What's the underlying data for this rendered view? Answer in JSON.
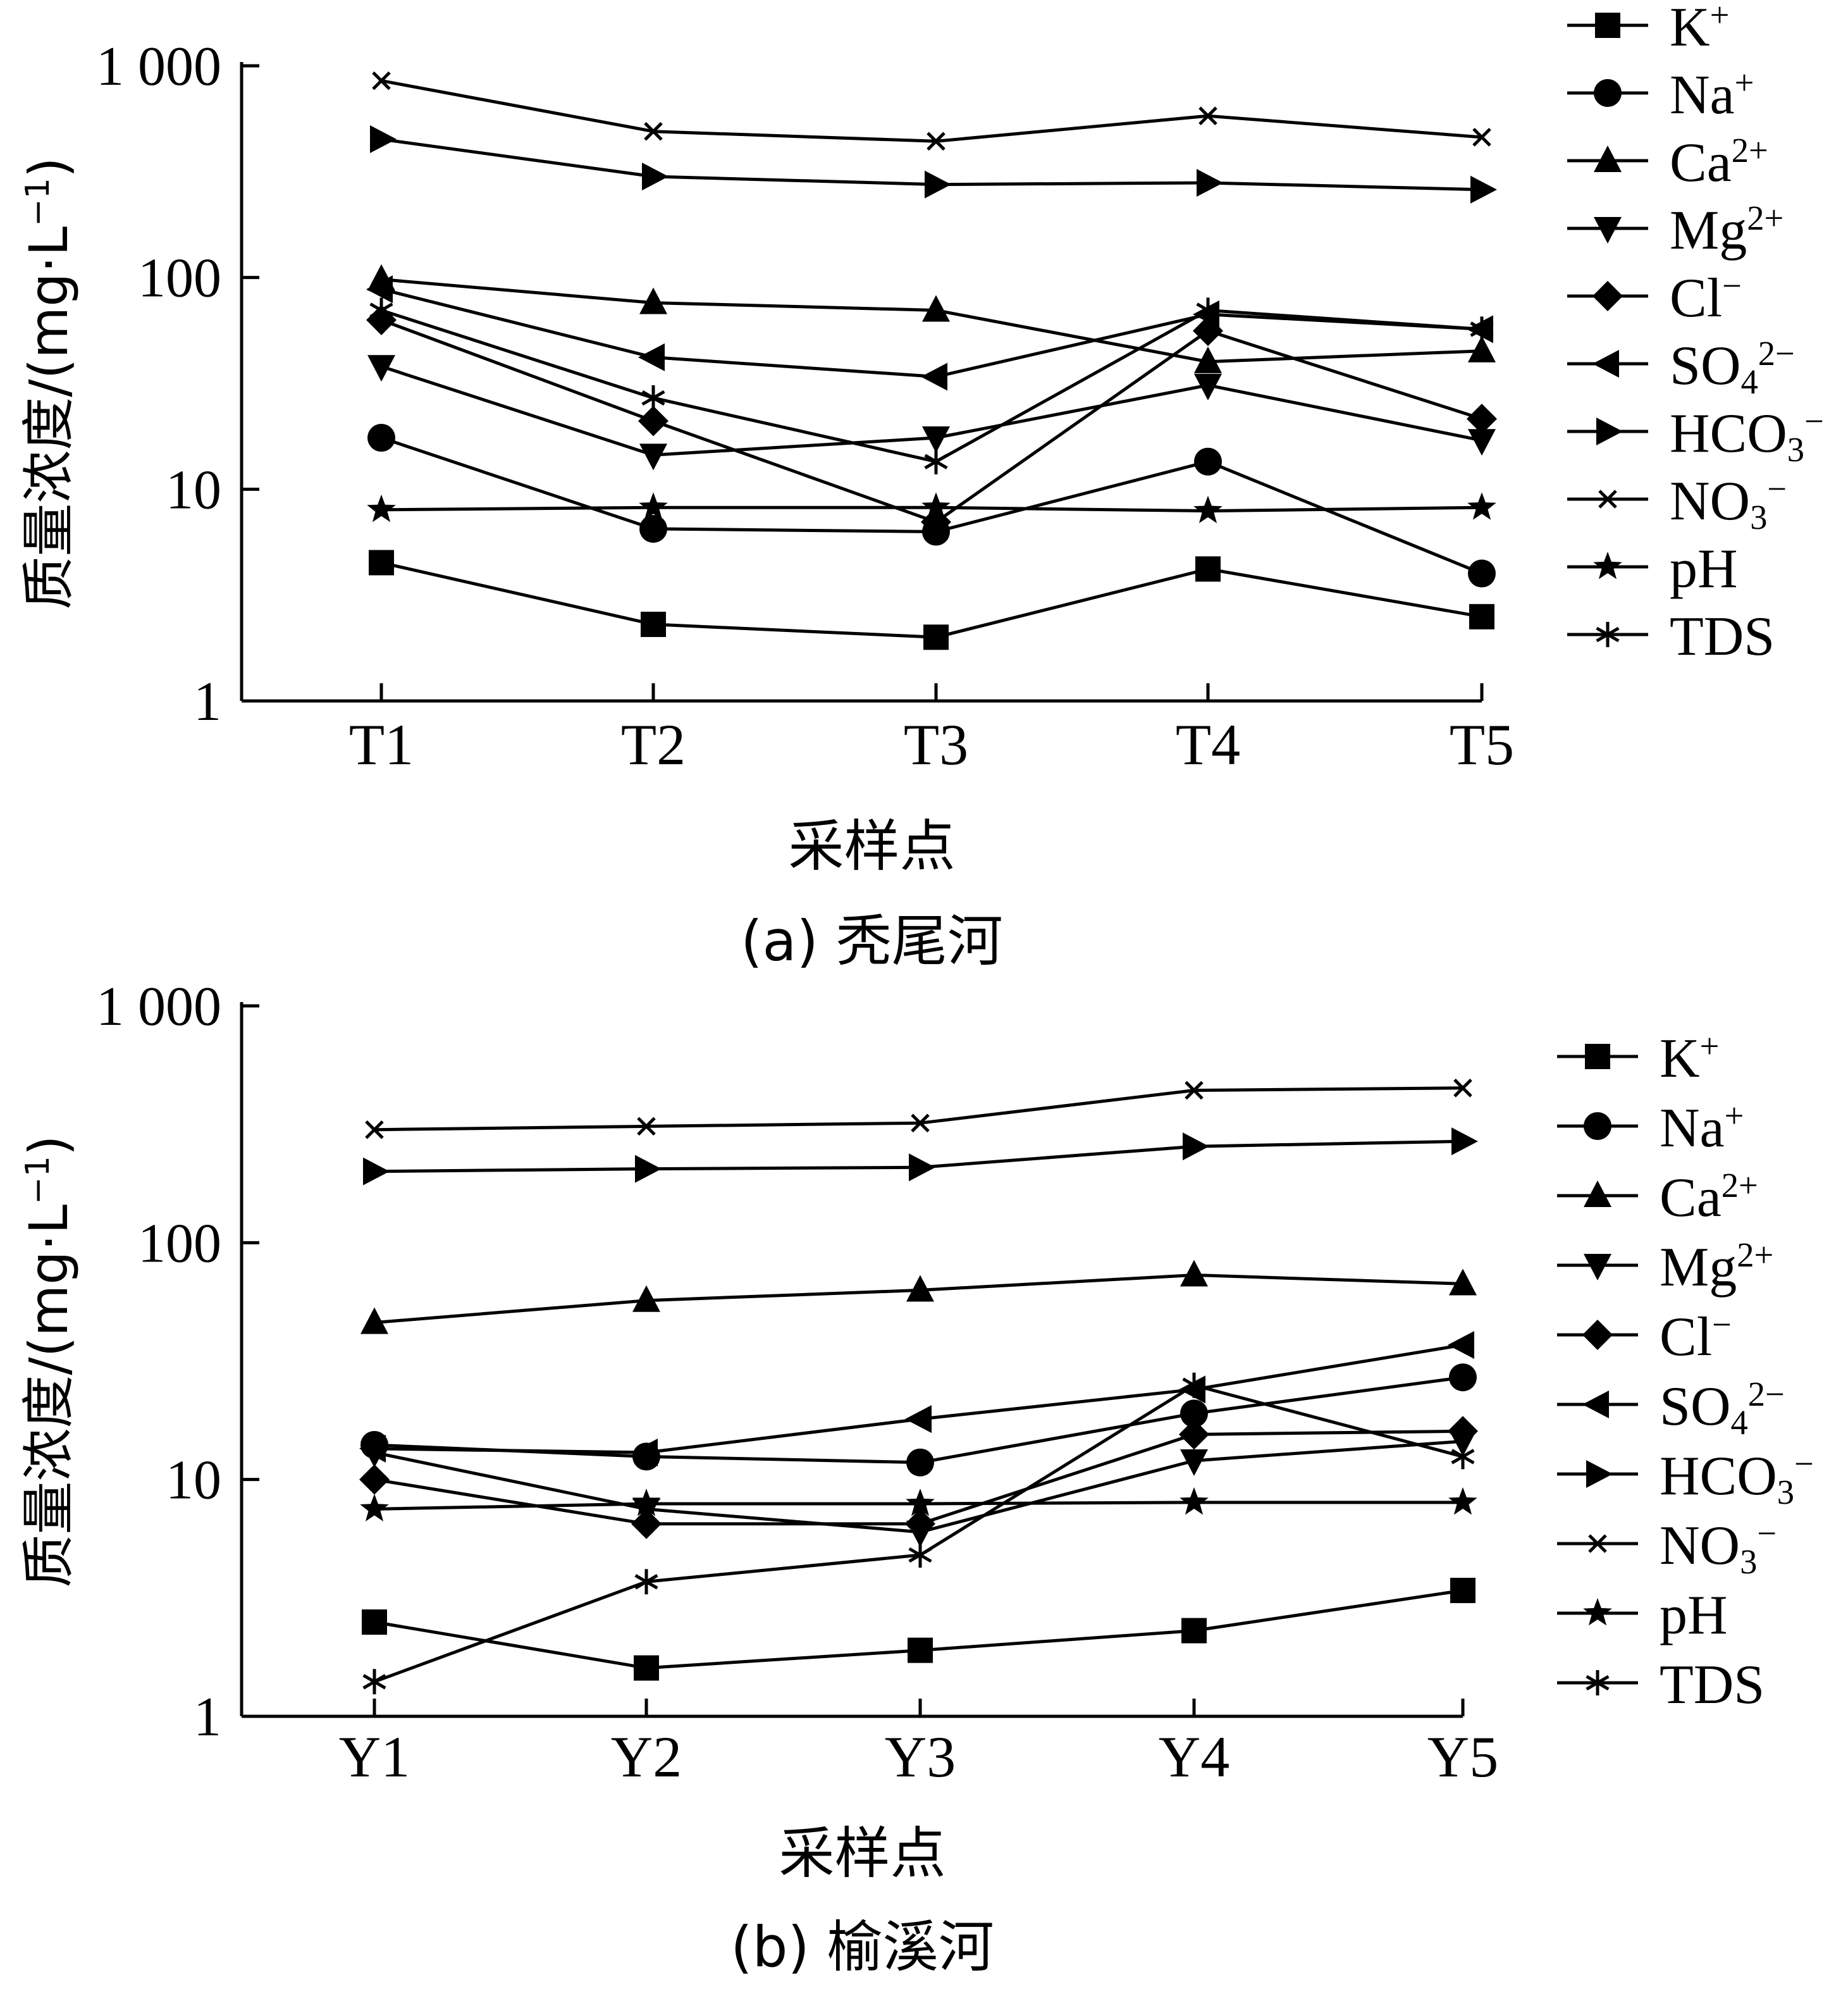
{
  "chart_data": [
    {
      "type": "line",
      "caption": "(a) 秃尾河",
      "xlabel": "采样点",
      "ylabel": "质量浓度/(mg·L⁻¹)",
      "yscale": "log",
      "ylim": [
        1,
        1000
      ],
      "y_ticks": [
        "1",
        "10",
        "100",
        "1 000"
      ],
      "categories": [
        "T1",
        "T2",
        "T3",
        "T4",
        "T5"
      ],
      "legend_position": "right",
      "series": [
        {
          "name": "K⁺",
          "marker": "square",
          "values": [
            4.5,
            2.3,
            2.0,
            4.2,
            2.5
          ]
        },
        {
          "name": "Na⁺",
          "marker": "circle",
          "values": [
            17.5,
            6.5,
            6.3,
            13.5,
            4.0
          ]
        },
        {
          "name": "Ca²⁺",
          "marker": "triangle-up",
          "values": [
            98,
            76,
            70,
            40,
            45
          ]
        },
        {
          "name": "Mg²⁺",
          "marker": "triangle-down",
          "values": [
            38,
            14.5,
            17.5,
            31,
            17
          ]
        },
        {
          "name": "Cl⁻",
          "marker": "diamond",
          "values": [
            63,
            21,
            7.0,
            56,
            21.5
          ]
        },
        {
          "name": "SO₄²⁻",
          "marker": "triangle-left",
          "values": [
            88,
            42,
            34,
            67,
            57
          ]
        },
        {
          "name": "HCO₃⁻",
          "marker": "triangle-right",
          "values": [
            450,
            300,
            275,
            280,
            260
          ]
        },
        {
          "name": "NO₃⁻",
          "marker": "x",
          "values": [
            850,
            490,
            440,
            580,
            460
          ]
        },
        {
          "name": "pH",
          "marker": "star",
          "values": [
            8.0,
            8.2,
            8.2,
            7.9,
            8.2
          ]
        },
        {
          "name": "TDS",
          "marker": "asterisk",
          "values": [
            70,
            27,
            13.5,
            70,
            57
          ]
        }
      ]
    },
    {
      "type": "line",
      "caption": "(b) 榆溪河",
      "xlabel": "采样点",
      "ylabel": "质量浓度/(mg·L⁻¹)",
      "yscale": "log",
      "ylim": [
        1,
        1000
      ],
      "y_ticks": [
        "1",
        "10",
        "100",
        "1 000"
      ],
      "categories": [
        "Y1",
        "Y2",
        "Y3",
        "Y4",
        "Y5"
      ],
      "legend_position": "right",
      "series": [
        {
          "name": "K⁺",
          "marker": "square",
          "values": [
            2.5,
            1.6,
            1.9,
            2.3,
            3.4
          ]
        },
        {
          "name": "Na⁺",
          "marker": "circle",
          "values": [
            14,
            12.5,
            11.8,
            19,
            27
          ]
        },
        {
          "name": "Ca²⁺",
          "marker": "triangle-up",
          "values": [
            46,
            57,
            63,
            73,
            67
          ]
        },
        {
          "name": "Mg²⁺",
          "marker": "triangle-down",
          "values": [
            13,
            7.5,
            6.0,
            12,
            14.5
          ]
        },
        {
          "name": "Cl⁻",
          "marker": "diamond",
          "values": [
            10,
            6.5,
            6.5,
            15.5,
            16
          ]
        },
        {
          "name": "SO₄²⁻",
          "marker": "triangle-left",
          "values": [
            13.5,
            13,
            18,
            24,
            37
          ]
        },
        {
          "name": "HCO₃⁻",
          "marker": "triangle-right",
          "values": [
            200,
            205,
            208,
            255,
            268
          ]
        },
        {
          "name": "NO₃⁻",
          "marker": "x",
          "values": [
            300,
            310,
            320,
            440,
            450
          ]
        },
        {
          "name": "pH",
          "marker": "star",
          "values": [
            7.5,
            7.9,
            7.9,
            8.0,
            8.0
          ]
        },
        {
          "name": "TDS",
          "marker": "asterisk",
          "values": [
            1.4,
            3.7,
            4.8,
            25,
            12.5
          ]
        }
      ]
    }
  ]
}
